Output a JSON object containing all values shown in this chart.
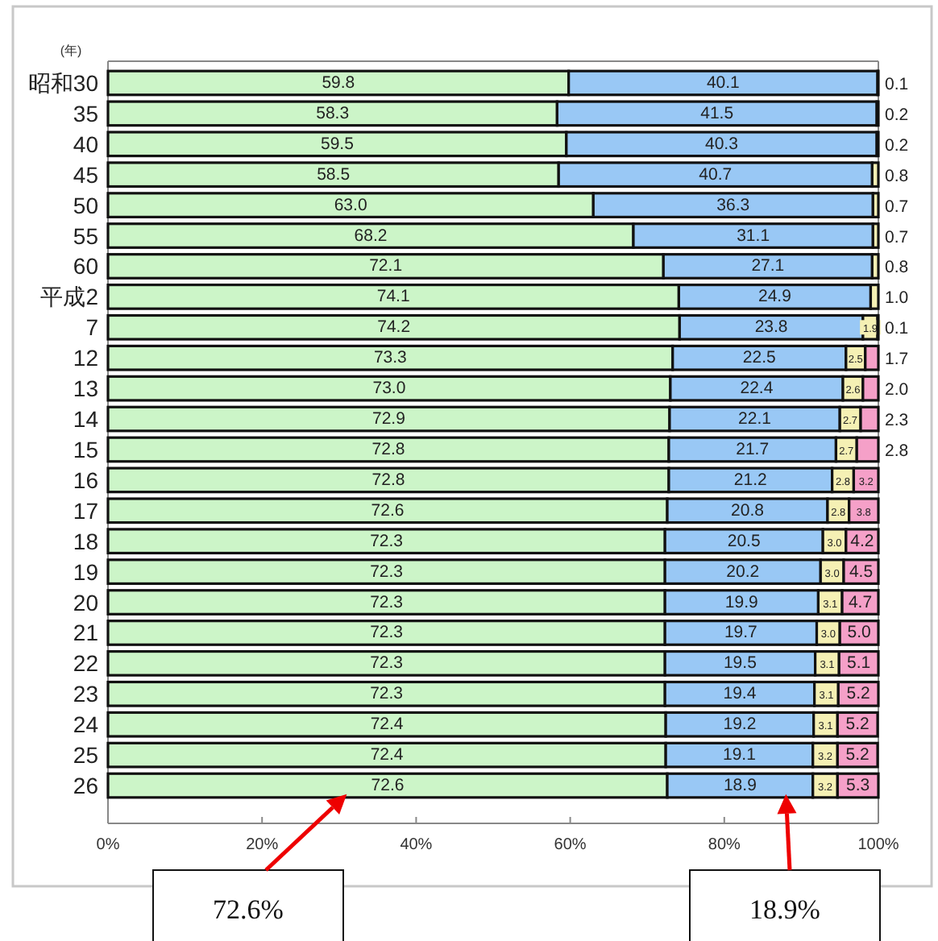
{
  "chart_data": {
    "type": "bar",
    "orientation": "horizontal",
    "stacked": true,
    "ylabel": "(年)",
    "categories": [
      "昭和30",
      "35",
      "40",
      "45",
      "50",
      "55",
      "60",
      "平成2",
      "7",
      "12",
      "13",
      "14",
      "15",
      "16",
      "17",
      "18",
      "19",
      "20",
      "21",
      "22",
      "23",
      "24",
      "25",
      "26"
    ],
    "series": [
      {
        "color": "#ccf5c8",
        "values": [
          59.8,
          58.3,
          59.5,
          58.5,
          63.0,
          68.2,
          72.1,
          74.1,
          74.2,
          73.3,
          73.0,
          72.9,
          72.8,
          72.8,
          72.6,
          72.3,
          72.3,
          72.3,
          72.3,
          72.3,
          72.3,
          72.4,
          72.4,
          72.6
        ],
        "value_labels": [
          "59.8",
          "58.3",
          "59.5",
          "58.5",
          "63.0",
          "68.2",
          "72.1",
          "74.1",
          "74.2",
          "73.3",
          "73.0",
          "72.9",
          "72.8",
          "72.8",
          "72.6",
          "72.3",
          "72.3",
          "72.3",
          "72.3",
          "72.3",
          "72.3",
          "72.4",
          "72.4",
          "72.6"
        ]
      },
      {
        "color": "#99c8f5",
        "values": [
          40.1,
          41.5,
          40.3,
          40.7,
          36.3,
          31.1,
          27.1,
          24.9,
          23.8,
          22.5,
          22.4,
          22.1,
          21.7,
          21.2,
          20.8,
          20.5,
          20.2,
          19.9,
          19.7,
          19.5,
          19.4,
          19.2,
          19.1,
          18.9
        ],
        "value_labels": [
          "40.1",
          "41.5",
          "40.3",
          "40.7",
          "36.3",
          "31.1",
          "27.1",
          "24.9",
          "23.8",
          "22.5",
          "22.4",
          "22.1",
          "21.7",
          "21.2",
          "20.8",
          "20.5",
          "20.2",
          "19.9",
          "19.7",
          "19.5",
          "19.4",
          "19.2",
          "19.1",
          "18.9"
        ]
      },
      {
        "color": "#f5f0b4",
        "values": [
          0.1,
          0.2,
          0.2,
          0.8,
          0.7,
          0.7,
          0.8,
          1.0,
          1.9,
          2.5,
          2.6,
          2.7,
          2.7,
          2.8,
          2.8,
          3.0,
          3.0,
          3.1,
          3.0,
          3.1,
          3.1,
          3.1,
          3.2,
          3.2
        ],
        "value_labels": [
          "0.1",
          "0.2",
          "0.2",
          "0.8",
          "0.7",
          "0.7",
          "0.8",
          "1.0",
          "1.9",
          "2.5",
          "2.6",
          "2.7",
          "2.7",
          "2.8",
          "2.8",
          "3.0",
          "3.0",
          "3.1",
          "3.0",
          "3.1",
          "3.1",
          "3.1",
          "3.2",
          "3.2"
        ]
      },
      {
        "color": "#f5a0c8",
        "values": [
          null,
          null,
          null,
          null,
          null,
          null,
          null,
          null,
          0.1,
          1.7,
          2.0,
          2.3,
          2.8,
          3.2,
          3.8,
          4.2,
          4.5,
          4.7,
          5.0,
          5.1,
          5.2,
          5.2,
          5.2,
          5.3
        ],
        "value_labels": [
          null,
          null,
          null,
          null,
          null,
          null,
          null,
          null,
          "0.1",
          "1.7",
          "2.0",
          "2.3",
          "2.8",
          "3.2",
          "3.8",
          "4.2",
          "4.5",
          "4.7",
          "5.0",
          "5.1",
          "5.2",
          "5.2",
          "5.2",
          "5.3"
        ]
      }
    ],
    "xlim": [
      0,
      100
    ],
    "xticks": [
      {
        "value": 0,
        "label": "0%"
      },
      {
        "value": 20,
        "label": "20%"
      },
      {
        "value": 40,
        "label": "40%"
      },
      {
        "value": 60,
        "label": "60%"
      },
      {
        "value": 80,
        "label": "80%"
      },
      {
        "value": 100,
        "label": "100%"
      }
    ],
    "annotations": [
      "72.6%",
      "18.9%"
    ]
  }
}
